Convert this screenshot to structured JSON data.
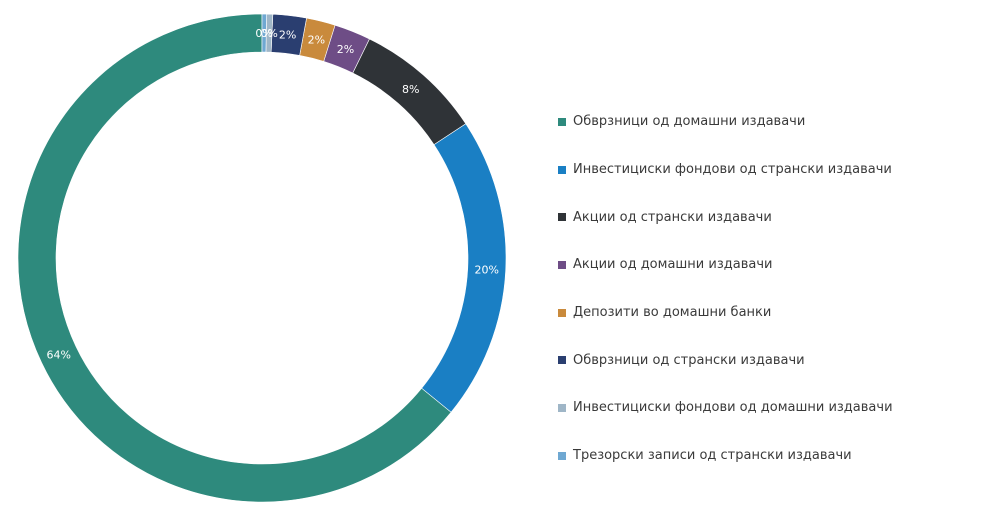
{
  "chart_data": {
    "type": "pie",
    "donut": true,
    "legend_position": "right",
    "categories": [
      "Обврзници од домашни издавачи",
      "Инвестициски фондови од странски издавачи",
      "Акции од странски издавачи",
      "Акции од домашни издавачи",
      "Депозити во домашни банки",
      "Обврзници од странски издавачи",
      "Инвестициски фондови од домашни издавачи",
      "Трезорски записи од странски издавачи"
    ],
    "values": [
      63.6,
      20.0,
      8.4,
      2.4,
      1.9,
      2.2,
      0.4,
      0.3
    ],
    "data_labels": [
      "64%",
      "20%",
      "8%",
      "2%",
      "2%",
      "2%",
      "0%",
      "0%"
    ],
    "colors": [
      "#2e8a7d",
      "#1a7fc4",
      "#2f3337",
      "#6e4d86",
      "#c98a3c",
      "#2a3e70",
      "#9fb6c7",
      "#6fa8d2"
    ]
  }
}
